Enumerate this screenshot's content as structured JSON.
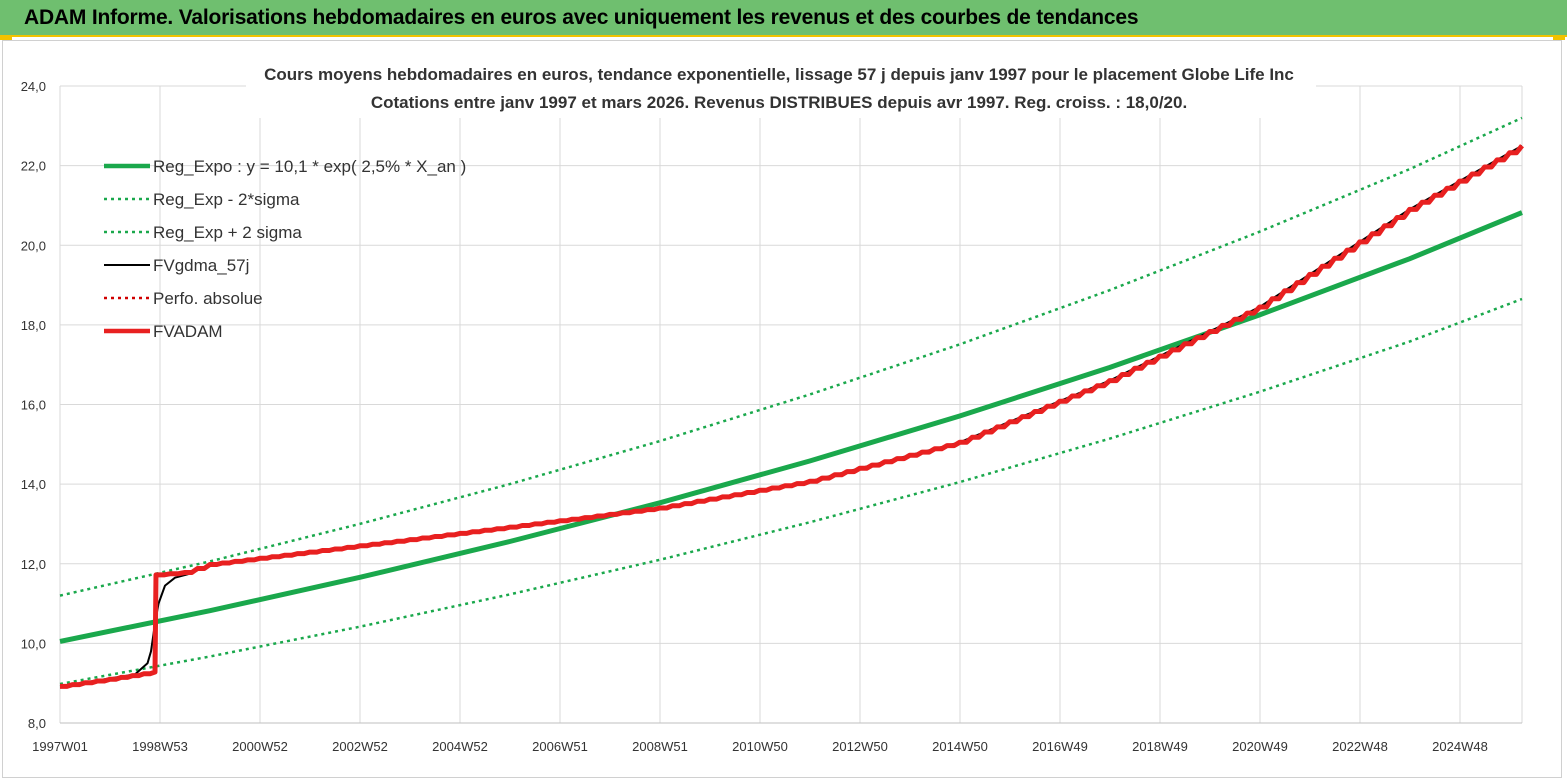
{
  "header": {
    "title": "ADAM Informe. Valorisations hebdomadaires en euros avec uniquement les revenus et des courbes de tendances"
  },
  "chart_data": {
    "type": "line",
    "title": "Cours moyens hebdomadaires en euros, tendance exponentielle, lissage 57 j depuis janv 1997 pour le placement Globe Life Inc",
    "subtitle": "Cotations entre janv 1997 et mars 2026. Revenus DISTRIBUES depuis avr 1997. Reg. croiss. : 18,0/20.",
    "xlabel": "",
    "ylabel": "",
    "x_range": [
      1997.0,
      2026.25
    ],
    "ylim": [
      8.0,
      24.0
    ],
    "y_ticks": [
      "8,0",
      "10,0",
      "12,0",
      "14,0",
      "16,0",
      "18,0",
      "20,0",
      "22,0",
      "24,0"
    ],
    "x_tick_labels": [
      "1997W01",
      "1998W53",
      "2000W52",
      "2002W52",
      "2004W52",
      "2006W51",
      "2008W51",
      "2010W50",
      "2012W50",
      "2014W50",
      "2016W49",
      "2018W49",
      "2020W49",
      "2022W48",
      "2024W48"
    ],
    "grid": true,
    "legend_position": "top-left",
    "series": [
      {
        "name": "Reg_Expo : y = 10,1 * exp( 2,5% *  X_an )",
        "color": "#1aa84c",
        "style": "solid-thick",
        "x": [
          1997,
          2000,
          2003,
          2006,
          2009,
          2012,
          2015,
          2018,
          2021,
          2024,
          2026.25
        ],
        "y": [
          10.05,
          10.82,
          11.66,
          12.56,
          13.53,
          14.58,
          15.71,
          16.93,
          18.25,
          19.66,
          20.82
        ]
      },
      {
        "name": "Reg_Exp - 2*sigma",
        "color": "#1aa84c",
        "style": "dotted",
        "x": [
          1997,
          2000,
          2003,
          2006,
          2009,
          2012,
          2015,
          2018,
          2021,
          2024,
          2026.25
        ],
        "y": [
          8.98,
          9.67,
          10.42,
          11.23,
          12.1,
          13.04,
          14.05,
          15.14,
          16.32,
          17.58,
          18.65
        ]
      },
      {
        "name": "Reg_Exp + 2 sigma",
        "color": "#1aa84c",
        "style": "dotted",
        "x": [
          1997,
          2000,
          2003,
          2006,
          2009,
          2012,
          2015,
          2018,
          2021,
          2024,
          2026.25
        ],
        "y": [
          11.2,
          12.06,
          13.0,
          14.0,
          15.08,
          16.25,
          17.51,
          18.87,
          20.34,
          21.91,
          23.2
        ]
      },
      {
        "name": "FVgdma_57j",
        "color": "#000000",
        "style": "solid",
        "x": [
          1997,
          1998.0,
          1998.5,
          1998.75,
          1998.82,
          1998.9,
          1998.97,
          1999.1,
          1999.3,
          1999.6,
          2000,
          2003,
          2006,
          2009,
          2012,
          2015,
          2018,
          2021,
          2024,
          2026.25
        ],
        "y": [
          8.92,
          9.12,
          9.22,
          9.5,
          9.8,
          10.5,
          11.0,
          11.45,
          11.65,
          11.75,
          11.98,
          12.45,
          12.92,
          13.4,
          14.07,
          15.05,
          16.6,
          18.45,
          20.9,
          22.5
        ]
      },
      {
        "name": "Perfo. absolue",
        "color": "#d00000",
        "style": "dotted",
        "x": [],
        "y": []
      },
      {
        "name": "FVADAM",
        "color": "#e82020",
        "style": "solid-thick",
        "x": [
          1997,
          1998.0,
          1998.9,
          1998.92,
          1999.5,
          2000,
          2003,
          2006,
          2009,
          2012,
          2015,
          2018,
          2021,
          2024,
          2026.25
        ],
        "y": [
          8.92,
          9.1,
          9.28,
          11.72,
          11.78,
          11.98,
          12.45,
          12.92,
          13.4,
          14.07,
          15.05,
          16.6,
          18.45,
          20.9,
          22.5
        ]
      }
    ]
  },
  "colors": {
    "header_bg": "#6fbf6f",
    "accent": "#f2c200"
  }
}
